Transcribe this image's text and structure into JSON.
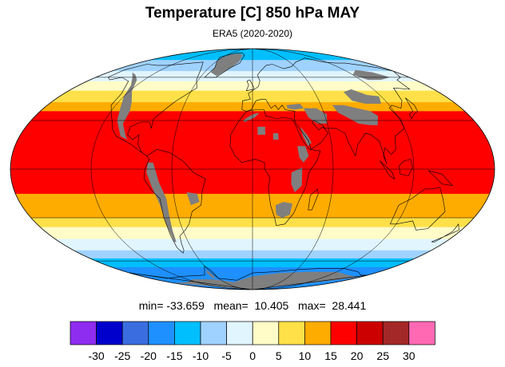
{
  "title": "Temperature [C] 850 hPa MAY",
  "subtitle": "ERA5 (2020-2020)",
  "stats": {
    "text": "min= -33.659   mean=  10.405   max=  28.441"
  },
  "map": {
    "projection": "mollweide",
    "missing_color": "#7f7f7f",
    "coast_color": "#000000",
    "zonal_bands": [
      {
        "lat_from": 90,
        "lat_to": 75,
        "value": -12
      },
      {
        "lat_from": 75,
        "lat_to": 65,
        "value": -6
      },
      {
        "lat_from": 65,
        "lat_to": 57,
        "value": -2
      },
      {
        "lat_from": 57,
        "lat_to": 50,
        "value": 2
      },
      {
        "lat_from": 50,
        "lat_to": 42,
        "value": 7
      },
      {
        "lat_from": 42,
        "lat_to": 36,
        "value": 12
      },
      {
        "lat_from": 36,
        "lat_to": -15,
        "value": 17
      },
      {
        "lat_from": -15,
        "lat_to": -22,
        "value": 14
      },
      {
        "lat_from": -22,
        "lat_to": -30,
        "value": 11
      },
      {
        "lat_from": -30,
        "lat_to": -36,
        "value": 6
      },
      {
        "lat_from": -36,
        "lat_to": -44,
        "value": 2
      },
      {
        "lat_from": -44,
        "lat_to": -52,
        "value": -3
      },
      {
        "lat_from": -52,
        "lat_to": -58,
        "value": -7
      },
      {
        "lat_from": -58,
        "lat_to": -65,
        "value": -12
      },
      {
        "lat_from": -65,
        "lat_to": -90,
        "value": -17
      }
    ]
  },
  "colorbar": {
    "colors": [
      "#8e2cf0",
      "#0000cd",
      "#3a6ee0",
      "#1e90ff",
      "#00bfff",
      "#a0d2ff",
      "#e1f5ff",
      "#fffcc8",
      "#ffe048",
      "#ffac00",
      "#ff0000",
      "#cd0000",
      "#a52828",
      "#ff69b4"
    ],
    "tick_labels": [
      "-30",
      "-25",
      "-20",
      "-15",
      "-10",
      "-5",
      "0",
      "5",
      "10",
      "15",
      "20",
      "25",
      "30"
    ],
    "levels": [
      -30,
      -25,
      -20,
      -15,
      -10,
      -5,
      0,
      5,
      10,
      15,
      20,
      25,
      30
    ]
  }
}
